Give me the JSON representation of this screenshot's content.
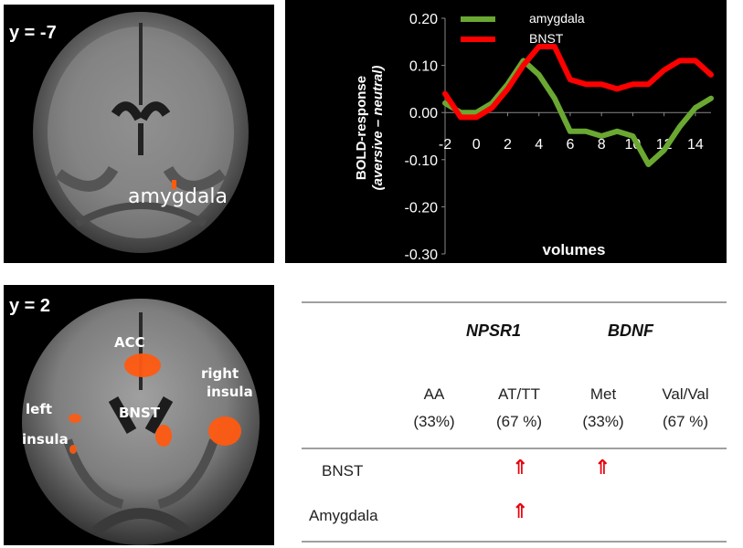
{
  "figure": {
    "top_slice_label": "y = -7",
    "top_region_label": "amygdala",
    "bottom_slice_label": "y = 2",
    "bottom_regions": {
      "acc": "ACC",
      "right_insula_line1": "right",
      "right_insula_line2": "insula",
      "left_insula_line1": "left",
      "left_insula_line2": "insula",
      "bnst": "BNST"
    },
    "colors": {
      "activation": "#ff5a10",
      "amygdala_line": "#6aa832",
      "bnst_line": "#ff0000",
      "arrow": "#e8000b"
    }
  },
  "chart_data": {
    "type": "line",
    "xlabel": "volumes",
    "ylabel_line1": "BOLD-response",
    "ylabel_line2": "(aversive – neutral)",
    "ylim": [
      -0.3,
      0.2
    ],
    "xlim": [
      -2,
      15
    ],
    "yticks": [
      "0.20",
      "0.10",
      "0.00",
      "-0.10",
      "-0.20",
      "-0.30"
    ],
    "ytick_values": [
      0.2,
      0.1,
      0.0,
      -0.1,
      -0.2,
      -0.3
    ],
    "xticks": [
      "-2",
      "0",
      "2",
      "4",
      "6",
      "8",
      "10",
      "12",
      "14"
    ],
    "xtick_values": [
      -2,
      0,
      2,
      4,
      6,
      8,
      10,
      12,
      14
    ],
    "legend_position": "top-right",
    "series": [
      {
        "name": "amygdala",
        "color": "#6aa832",
        "x": [
          -2,
          -1,
          0,
          1,
          2,
          3,
          4,
          5,
          6,
          7,
          8,
          9,
          10,
          11,
          12,
          13,
          14,
          15
        ],
        "values": [
          0.02,
          0.0,
          0.0,
          0.02,
          0.06,
          0.11,
          0.08,
          0.03,
          -0.04,
          -0.04,
          -0.05,
          -0.04,
          -0.05,
          -0.11,
          -0.08,
          -0.03,
          0.01,
          0.03
        ]
      },
      {
        "name": "BNST",
        "color": "#ff0000",
        "x": [
          -2,
          -1,
          0,
          1,
          2,
          3,
          4,
          5,
          6,
          7,
          8,
          9,
          10,
          11,
          12,
          13,
          14,
          15
        ],
        "values": [
          0.04,
          -0.01,
          -0.01,
          0.01,
          0.05,
          0.1,
          0.14,
          0.14,
          0.07,
          0.06,
          0.06,
          0.05,
          0.06,
          0.06,
          0.09,
          0.11,
          0.11,
          0.08
        ]
      }
    ]
  },
  "table": {
    "gene1": "NPSR1",
    "gene2": "BDNF",
    "columns": [
      {
        "genotype": "AA",
        "percent": "(33%)"
      },
      {
        "genotype": "AT/TT",
        "percent": "(67 %)"
      },
      {
        "genotype": "Met",
        "percent": "(33%)"
      },
      {
        "genotype": "Val/Val",
        "percent": "(67 %)"
      }
    ],
    "rows": [
      {
        "label": "BNST",
        "arrows": [
          "",
          "⇑",
          "⇑",
          ""
        ]
      },
      {
        "label": "Amygdala",
        "arrows": [
          "",
          "⇑",
          "",
          ""
        ]
      }
    ]
  }
}
